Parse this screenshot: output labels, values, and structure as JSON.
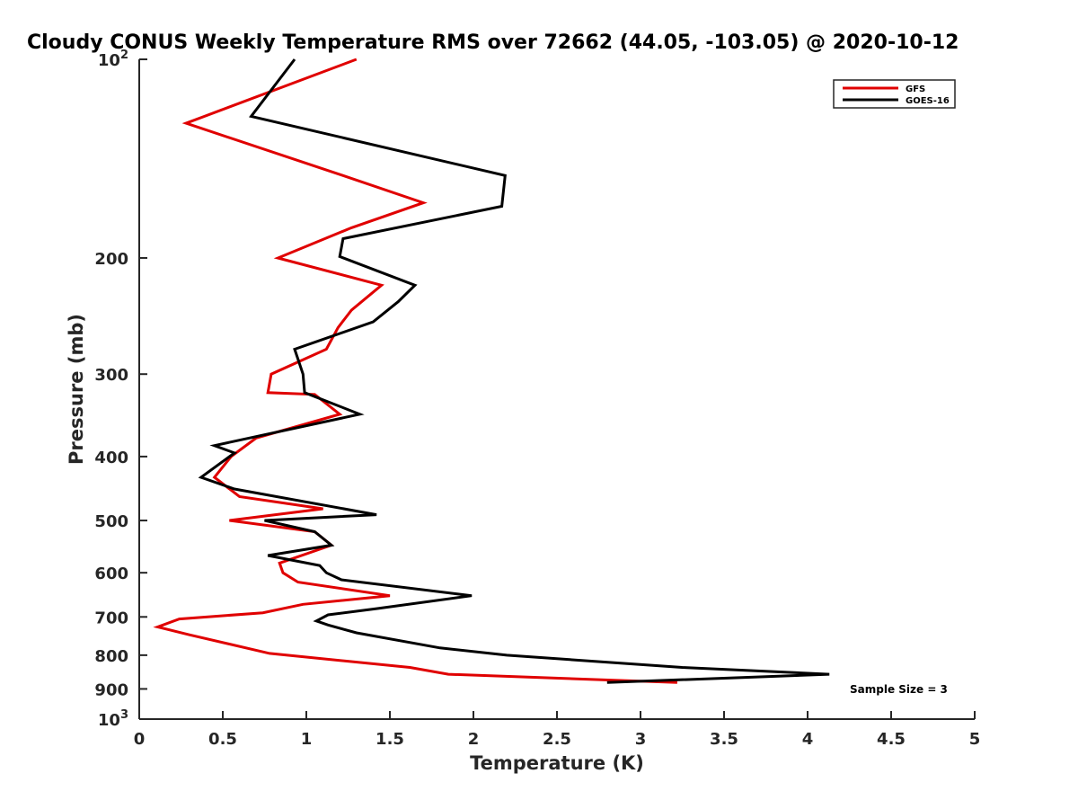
{
  "chart_data": {
    "type": "line",
    "title": "Cloudy CONUS Weekly Temperature RMS over 72662 (44.05, -103.05) @ 2020-10-12",
    "xlabel": "Temperature (K)",
    "ylabel": "Pressure (mb)",
    "xlim": [
      0,
      5
    ],
    "ylim": [
      1000,
      100
    ],
    "y_scale": "log",
    "y_reversed": true,
    "x_ticks": [
      "0",
      "0.5",
      "1",
      "1.5",
      "2",
      "2.5",
      "3",
      "3.5",
      "4",
      "4.5",
      "5"
    ],
    "y_ticks": [
      {
        "value": 100,
        "base": "10",
        "exp": "2"
      },
      {
        "value": 200,
        "label": "200"
      },
      {
        "value": 300,
        "label": "300"
      },
      {
        "value": 400,
        "label": "400"
      },
      {
        "value": 500,
        "label": "500"
      },
      {
        "value": 600,
        "label": "600"
      },
      {
        "value": 700,
        "label": "700"
      },
      {
        "value": 800,
        "label": "800"
      },
      {
        "value": 900,
        "label": "900"
      },
      {
        "value": 1000,
        "base": "10",
        "exp": "3"
      }
    ],
    "legend_position": "top-right",
    "grid": false,
    "annotation": "Sample Size = 3",
    "series": [
      {
        "name": "GFS",
        "color": "#e00000",
        "points": [
          [
            1.3,
            100
          ],
          [
            0.28,
            125
          ],
          [
            1.22,
            150
          ],
          [
            1.7,
            165
          ],
          [
            1.27,
            180
          ],
          [
            0.83,
            200
          ],
          [
            1.45,
            220
          ],
          [
            1.27,
            240
          ],
          [
            1.19,
            255
          ],
          [
            1.12,
            275
          ],
          [
            0.79,
            300
          ],
          [
            0.77,
            320
          ],
          [
            1.05,
            322
          ],
          [
            1.2,
            345
          ],
          [
            0.7,
            375
          ],
          [
            0.55,
            400
          ],
          [
            0.45,
            430
          ],
          [
            0.6,
            460
          ],
          [
            1.1,
            480
          ],
          [
            0.54,
            500
          ],
          [
            1.05,
            520
          ],
          [
            1.15,
            545
          ],
          [
            0.84,
            580
          ],
          [
            0.86,
            600
          ],
          [
            0.95,
            620
          ],
          [
            1.5,
            650
          ],
          [
            0.98,
            670
          ],
          [
            0.74,
            690
          ],
          [
            0.24,
            705
          ],
          [
            0.11,
            725
          ],
          [
            0.3,
            745
          ],
          [
            0.78,
            795
          ],
          [
            1.62,
            835
          ],
          [
            1.85,
            855
          ],
          [
            3.22,
            880
          ]
        ]
      },
      {
        "name": "GOES-16",
        "color": "#000000",
        "points": [
          [
            0.93,
            100
          ],
          [
            0.67,
            122
          ],
          [
            2.19,
            150
          ],
          [
            2.17,
            167
          ],
          [
            1.22,
            187
          ],
          [
            1.2,
            199
          ],
          [
            1.65,
            220
          ],
          [
            1.55,
            233
          ],
          [
            1.4,
            250
          ],
          [
            0.93,
            275
          ],
          [
            0.98,
            300
          ],
          [
            0.99,
            320
          ],
          [
            1.32,
            345
          ],
          [
            0.45,
            385
          ],
          [
            0.57,
            395
          ],
          [
            0.37,
            430
          ],
          [
            0.57,
            448
          ],
          [
            1.42,
            490
          ],
          [
            0.75,
            500
          ],
          [
            1.05,
            520
          ],
          [
            1.15,
            545
          ],
          [
            0.77,
            565
          ],
          [
            1.08,
            585
          ],
          [
            1.12,
            600
          ],
          [
            1.21,
            615
          ],
          [
            1.99,
            650
          ],
          [
            1.42,
            680
          ],
          [
            1.13,
            695
          ],
          [
            1.06,
            710
          ],
          [
            1.13,
            720
          ],
          [
            1.3,
            740
          ],
          [
            1.8,
            780
          ],
          [
            2.2,
            800
          ],
          [
            3.25,
            835
          ],
          [
            4.13,
            855
          ],
          [
            2.8,
            880
          ]
        ]
      }
    ]
  }
}
